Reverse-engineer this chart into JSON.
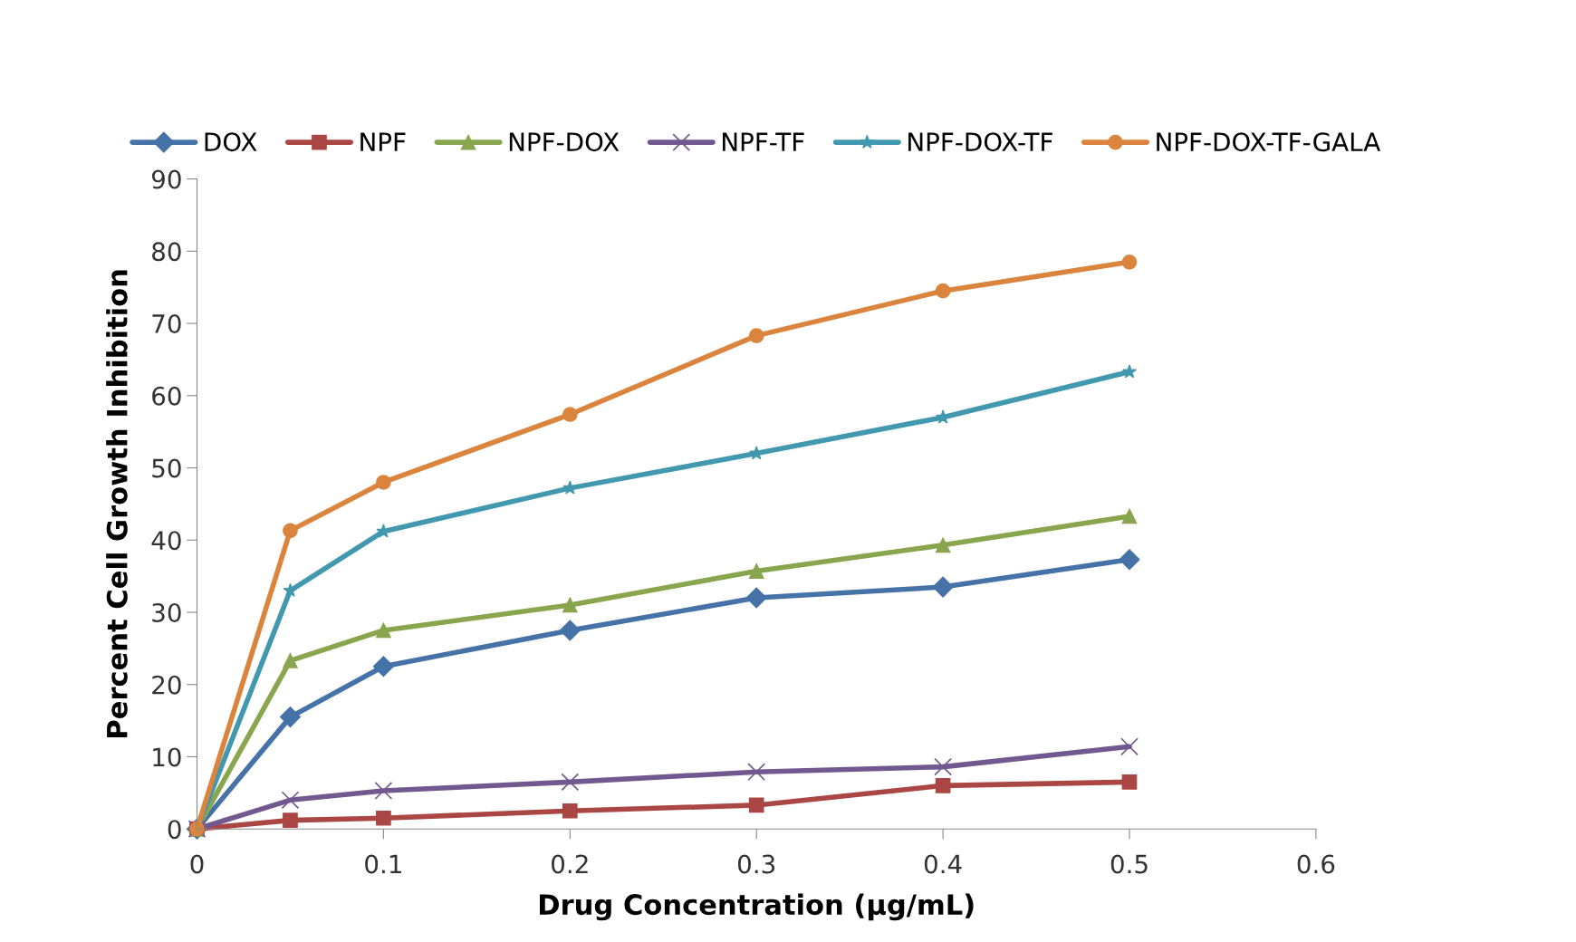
{
  "chart_data": {
    "type": "line",
    "xlabel": "Drug Concentration (µg/mL)",
    "ylabel": "Percent Cell Growth Inhibition",
    "x": [
      0,
      0.05,
      0.1,
      0.2,
      0.3,
      0.4,
      0.5
    ],
    "xlim": [
      0,
      0.6
    ],
    "xticks": [
      0,
      0.1,
      0.2,
      0.3,
      0.4,
      0.5,
      0.6
    ],
    "ylim": [
      0,
      90
    ],
    "yticks": [
      0,
      10,
      20,
      30,
      40,
      50,
      60,
      70,
      80,
      90
    ],
    "grid": false,
    "legend": "top",
    "line_style": "solid",
    "series": [
      {
        "name": "DOX",
        "color": "#4572a7",
        "marker": "diamond",
        "values": [
          0,
          15.5,
          22.5,
          27.5,
          32,
          33.5,
          37.3
        ]
      },
      {
        "name": "NPF",
        "color": "#aa4643",
        "marker": "square",
        "values": [
          0,
          1.2,
          1.5,
          2.5,
          3.3,
          6,
          6.5
        ]
      },
      {
        "name": "NPF-DOX",
        "color": "#89a54e",
        "marker": "triangle",
        "values": [
          0,
          23.3,
          27.5,
          31,
          35.7,
          39.3,
          43.3
        ]
      },
      {
        "name": "NPF-TF",
        "color": "#71588f",
        "marker": "cross",
        "values": [
          0,
          4,
          5.3,
          6.5,
          7.9,
          8.6,
          11.4
        ]
      },
      {
        "name": "NPF-DOX-TF",
        "color": "#4198af",
        "marker": "star",
        "values": [
          0,
          33,
          41.2,
          47.2,
          52,
          57,
          63.3
        ]
      },
      {
        "name": "NPF-DOX-TF-GALA",
        "color": "#db843d",
        "marker": "circle",
        "values": [
          0,
          41.3,
          48,
          57.4,
          68.3,
          74.5,
          78.5
        ]
      }
    ]
  }
}
